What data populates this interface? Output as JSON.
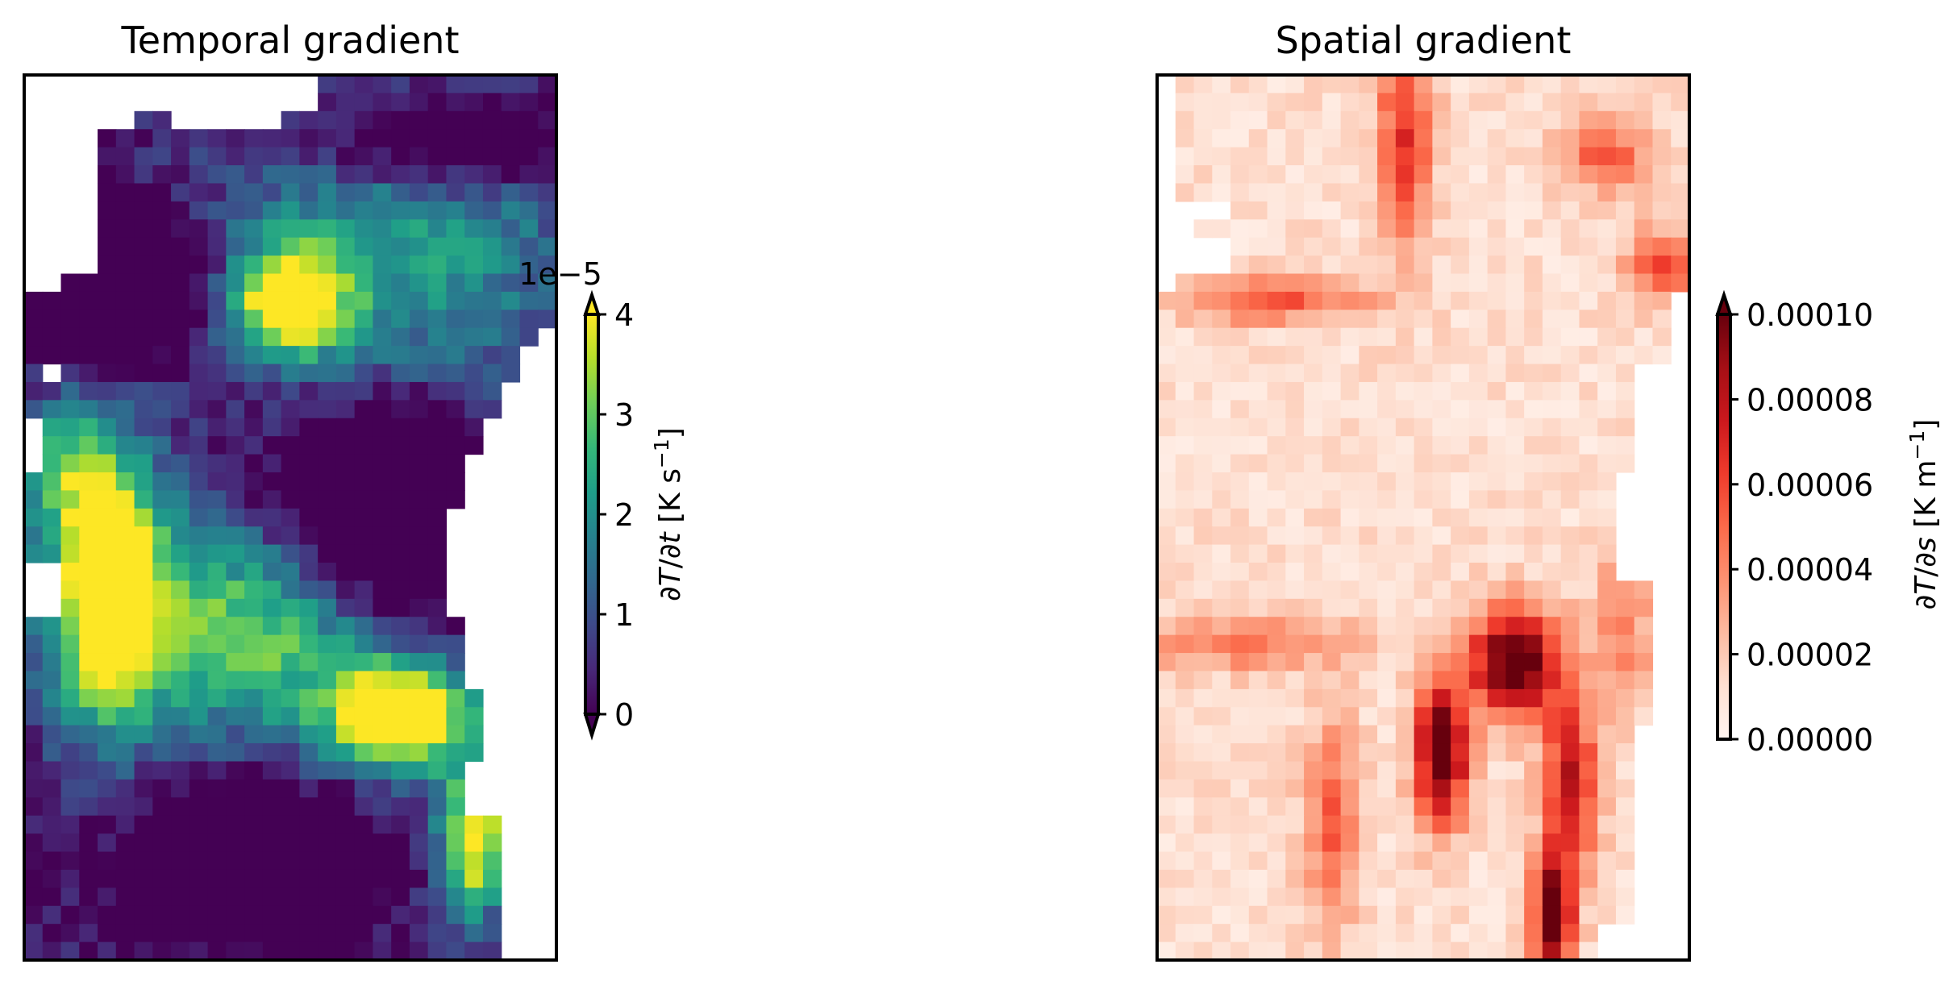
{
  "chart_data": [
    {
      "type": "heatmap",
      "title": "Temporal gradient",
      "grid": false,
      "axes_ticks": false,
      "colormap": "viridis",
      "colorbar": {
        "label": "∂T/∂t [K s⁻¹]",
        "label_parts": [
          "∂",
          "T",
          "/∂",
          "t",
          " [K s",
          "−1",
          "]"
        ],
        "offset_text": "1e−5",
        "ticks": [
          "0",
          "1",
          "2",
          "3",
          "4"
        ],
        "range": [
          0,
          4
        ],
        "extend": "both",
        "placement": "right"
      },
      "nrows": 49,
      "ncols": 29,
      "value_description": "gridded field in units of 1e-5 K/s, clipped to [0,4]"
    },
    {
      "type": "heatmap",
      "title": "Spatial gradient",
      "grid": false,
      "axes_ticks": false,
      "colormap": "Reds",
      "colorbar": {
        "label": "∂T/∂s [K m⁻¹]",
        "label_parts": [
          "∂",
          "T",
          "/∂",
          "s",
          " [K m",
          "−1",
          "]"
        ],
        "ticks": [
          "0.00000",
          "0.00002",
          "0.00004",
          "0.00006",
          "0.00008",
          "0.00010"
        ],
        "range": [
          0,
          0.0001
        ],
        "extend": "max",
        "placement": "right"
      },
      "nrows": 49,
      "ncols": 29,
      "value_description": "gridded field in K/m, clipped to [0,0.0001]"
    }
  ],
  "colors": {
    "viridis": [
      "#440154",
      "#482878",
      "#3e4989",
      "#31688e",
      "#26828e",
      "#1f9e89",
      "#35b779",
      "#6ece58",
      "#b5de2b",
      "#fde725"
    ],
    "reds": [
      "#fff5f0",
      "#fee0d2",
      "#fcbba1",
      "#fc9272",
      "#fb6a4a",
      "#ef3b2c",
      "#cb181d",
      "#a50f15",
      "#67000d"
    ]
  }
}
